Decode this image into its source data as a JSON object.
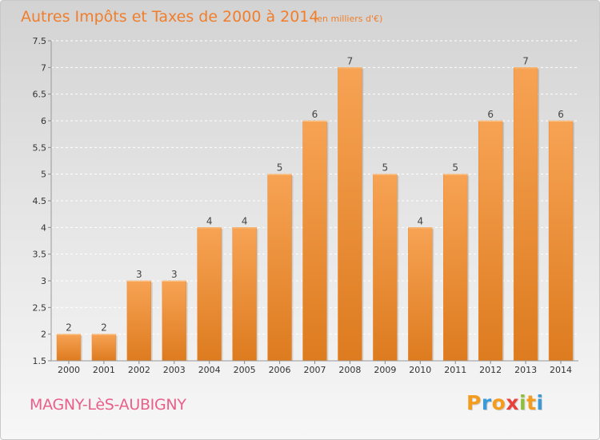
{
  "chart_data": {
    "type": "bar",
    "title": "Autres Impôts et Taxes de 2000 à 2014",
    "subtitle": "(en milliers d'€)",
    "categories": [
      "2000",
      "2001",
      "2002",
      "2003",
      "2004",
      "2005",
      "2006",
      "2007",
      "2008",
      "2009",
      "2010",
      "2011",
      "2012",
      "2013",
      "2014"
    ],
    "values": [
      2,
      2,
      3,
      3,
      4,
      4,
      5,
      6,
      7,
      5,
      4,
      5,
      6,
      7,
      6
    ],
    "ylim": [
      1.5,
      7.5
    ],
    "yticks": [
      "1.5",
      "2",
      "2.5",
      "3",
      "3.5",
      "4",
      "4.5",
      "5",
      "5.5",
      "6",
      "6.5",
      "7",
      "7.5"
    ],
    "xlabel": "",
    "ylabel": "",
    "grid": true,
    "bar_color": "#f28c2c"
  },
  "footer": {
    "commune": "MAGNY-LèS-AUBIGNY",
    "brand": [
      "P",
      "r",
      "o",
      "x",
      "i",
      "t",
      "i"
    ],
    "brand_colors": [
      "#f39c1e",
      "#3a9ad9",
      "#f39c1e",
      "#e8413c",
      "#8dbf3c",
      "#f39c1e",
      "#3a9ad9"
    ]
  }
}
